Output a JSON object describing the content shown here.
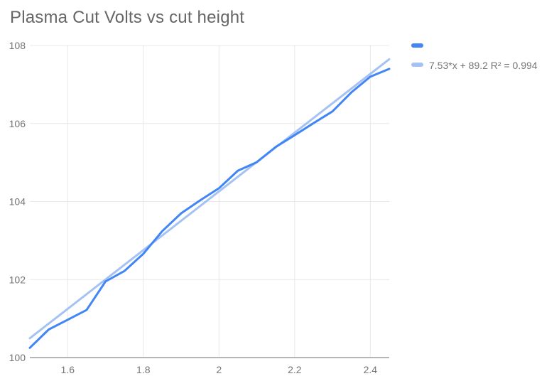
{
  "title": "Plasma Cut Volts vs cut height",
  "colors": {
    "background": "#ffffff",
    "series_blue": "#4285f4",
    "trend_blue": "#a4c2f4",
    "gridline": "#e8e8e8",
    "axis_line": "#b5b5b5",
    "tick_text": "#757575",
    "title_text": "#666666",
    "legend_text": "#757575"
  },
  "legend": {
    "items": [
      {
        "label": "",
        "color": "#4285f4"
      },
      {
        "label": "7.53*x + 89.2 R² = 0.994",
        "color": "#a4c2f4"
      }
    ]
  },
  "chart_data": {
    "type": "line",
    "title": "Plasma Cut Volts vs cut height",
    "xlabel": "",
    "ylabel": "",
    "xlim": [
      1.5,
      2.45
    ],
    "ylim": [
      100,
      108
    ],
    "grid": true,
    "legend_position": "top-right",
    "x_ticks": {
      "values": [
        1.6,
        1.8,
        2.0,
        2.2,
        2.4
      ],
      "labels": [
        "1.6",
        "1.8",
        "2",
        "2.2",
        "2.4"
      ]
    },
    "y_ticks": {
      "values": [
        100,
        102,
        104,
        106,
        108
      ],
      "labels": [
        "100",
        "102",
        "104",
        "106",
        "108"
      ]
    },
    "series": [
      {
        "name": "",
        "color": "#4285f4",
        "x": [
          1.5,
          1.55,
          1.6,
          1.65,
          1.7,
          1.75,
          1.8,
          1.85,
          1.9,
          1.95,
          2.0,
          2.05,
          2.1,
          2.15,
          2.2,
          2.25,
          2.3,
          2.35,
          2.4,
          2.45
        ],
        "y": [
          100.25,
          100.72,
          100.97,
          101.22,
          101.95,
          102.22,
          102.66,
          103.24,
          103.7,
          104.03,
          104.34,
          104.79,
          105.01,
          105.4,
          105.7,
          106.01,
          106.31,
          106.8,
          107.2,
          107.4
        ]
      }
    ],
    "trendline": {
      "label": "7.53*x + 89.2 R² = 0.994",
      "slope": 7.53,
      "intercept": 89.2,
      "r_squared": 0.994,
      "color": "#a4c2f4"
    }
  }
}
